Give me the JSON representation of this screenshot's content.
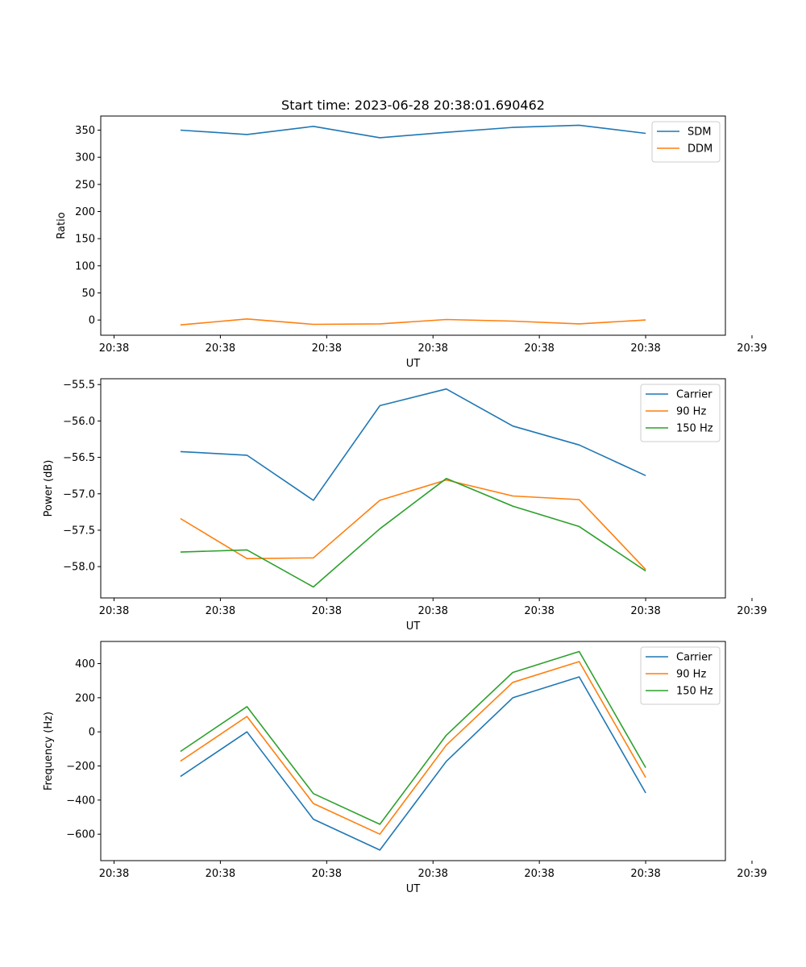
{
  "figure": {
    "title": "Start time: 2023-06-28 20:38:01.690462"
  },
  "colors": {
    "blue": "#1f77b4",
    "orange": "#ff7f0e",
    "green": "#2ca02c"
  },
  "chart_data": [
    {
      "type": "line",
      "title": "Start time: 2023-06-28 20:38:01.690462",
      "xlabel": "UT",
      "ylabel": "Ratio",
      "x": [
        0.5,
        1.0,
        1.5,
        2.0,
        2.5,
        3.0,
        3.5,
        4.0
      ],
      "xlim": [
        -0.1,
        4.6
      ],
      "x_ticks": [
        0,
        0.8,
        1.6,
        2.4,
        3.2,
        4.0,
        4.8
      ],
      "x_tick_labels": [
        "20:38",
        "20:38",
        "20:38",
        "20:38",
        "20:38",
        "20:38",
        "20:39"
      ],
      "ylim": [
        -28,
        376
      ],
      "y_ticks": [
        0,
        50,
        100,
        150,
        200,
        250,
        300,
        350
      ],
      "y_tick_labels": [
        "0",
        "50",
        "100",
        "150",
        "200",
        "250",
        "300",
        "350"
      ],
      "legend": "top-right",
      "series": [
        {
          "name": "SDM",
          "color": "#1f77b4",
          "values": [
            350,
            342,
            357,
            336,
            346,
            355,
            359,
            344
          ]
        },
        {
          "name": "DDM",
          "color": "#ff7f0e",
          "values": [
            -9,
            2,
            -8,
            -7,
            1,
            -2,
            -7,
            0
          ]
        }
      ]
    },
    {
      "type": "line",
      "xlabel": "UT",
      "ylabel": "Power (dB)",
      "x": [
        0.5,
        1.0,
        1.5,
        2.0,
        2.5,
        3.0,
        3.5,
        4.0
      ],
      "xlim": [
        -0.1,
        4.6
      ],
      "x_ticks": [
        0,
        0.8,
        1.6,
        2.4,
        3.2,
        4.0,
        4.8
      ],
      "x_tick_labels": [
        "20:38",
        "20:38",
        "20:38",
        "20:38",
        "20:38",
        "20:38",
        "20:39"
      ],
      "ylim": [
        -58.43,
        -55.42
      ],
      "y_ticks": [
        -58.0,
        -57.5,
        -57.0,
        -56.5,
        -56.0,
        -55.5
      ],
      "y_tick_labels": [
        "−58.0",
        "−57.5",
        "−57.0",
        "−56.5",
        "−56.0",
        "−55.5"
      ],
      "legend": "top-right",
      "series": [
        {
          "name": "Carrier",
          "color": "#1f77b4",
          "values": [
            -56.42,
            -56.47,
            -57.09,
            -55.79,
            -55.56,
            -56.07,
            -56.33,
            -56.75
          ]
        },
        {
          "name": "90 Hz",
          "color": "#ff7f0e",
          "values": [
            -57.34,
            -57.89,
            -57.88,
            -57.09,
            -56.81,
            -57.03,
            -57.08,
            -58.04
          ]
        },
        {
          "name": "150 Hz",
          "color": "#2ca02c",
          "values": [
            -57.8,
            -57.77,
            -58.28,
            -57.48,
            -56.79,
            -57.17,
            -57.45,
            -58.06
          ]
        }
      ]
    },
    {
      "type": "line",
      "xlabel": "UT",
      "ylabel": "Frequency (Hz)",
      "x": [
        0.5,
        1.0,
        1.5,
        2.0,
        2.5,
        3.0,
        3.5,
        4.0
      ],
      "xlim": [
        -0.1,
        4.6
      ],
      "x_ticks": [
        0,
        0.8,
        1.6,
        2.4,
        3.2,
        4.0,
        4.8
      ],
      "x_tick_labels": [
        "20:38",
        "20:38",
        "20:38",
        "20:38",
        "20:38",
        "20:38",
        "20:39"
      ],
      "ylim": [
        -755,
        530
      ],
      "y_ticks": [
        -600,
        -400,
        -200,
        0,
        200,
        400
      ],
      "y_tick_labels": [
        "−600",
        "−400",
        "−200",
        "0",
        "200",
        "400"
      ],
      "legend": "top-right",
      "series": [
        {
          "name": "Carrier",
          "color": "#1f77b4",
          "values": [
            -262,
            0,
            -512,
            -693,
            -173,
            200,
            322,
            -358
          ]
        },
        {
          "name": "90 Hz",
          "color": "#ff7f0e",
          "values": [
            -172,
            90,
            -420,
            -600,
            -78,
            290,
            412,
            -268
          ]
        },
        {
          "name": "150 Hz",
          "color": "#2ca02c",
          "values": [
            -115,
            148,
            -362,
            -542,
            -20,
            348,
            471,
            -210
          ]
        }
      ]
    }
  ]
}
